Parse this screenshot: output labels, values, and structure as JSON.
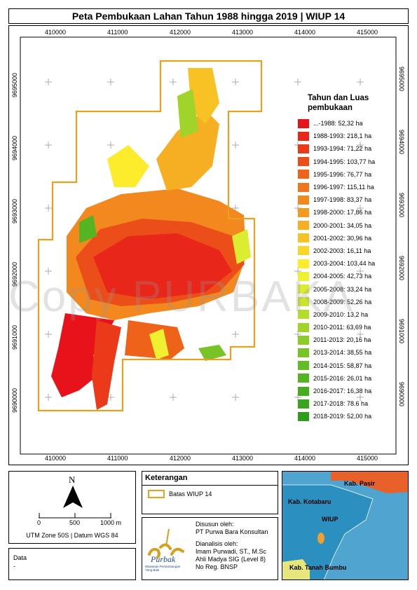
{
  "title": "Peta Pembukaan Lahan Tahun 1988 hingga 2019 | WIUP 14",
  "watermark": "Copy PURBAKA",
  "x_ticks": [
    "410000",
    "411000",
    "412000",
    "413000",
    "414000",
    "415000"
  ],
  "y_ticks": [
    "9695000",
    "9694000",
    "9693000",
    "9692000",
    "9691000",
    "9690000"
  ],
  "legend": {
    "title_line1": "Tahun dan Luas",
    "title_line2": "pembukaan",
    "items": [
      {
        "label": "...-1988: 52,32 ha",
        "color": "#e8121a"
      },
      {
        "label": "1988-1993: 218,1 ha",
        "color": "#e8261a"
      },
      {
        "label": "1993-1994: 71,22 ha",
        "color": "#ea3a1a"
      },
      {
        "label": "1994-1995: 103,77 ha",
        "color": "#ec4e1a"
      },
      {
        "label": "1995-1996: 76,77 ha",
        "color": "#ee621a"
      },
      {
        "label": "1996-1997: 115,11 ha",
        "color": "#f0761c"
      },
      {
        "label": "1997-1998: 83,37 ha",
        "color": "#f2881e"
      },
      {
        "label": "1998-2000: 17,86 ha",
        "color": "#f49a20"
      },
      {
        "label": "2000-2001: 34,05 ha",
        "color": "#f6ae22"
      },
      {
        "label": "2001-2002: 30,96 ha",
        "color": "#f8c224"
      },
      {
        "label": "2002-2003: 16,11 ha",
        "color": "#fad628"
      },
      {
        "label": "2003-2004: 103,44 ha",
        "color": "#fcec2c"
      },
      {
        "label": "2004-2005: 42,73 ha",
        "color": "#eef030"
      },
      {
        "label": "2005-2008: 33,24 ha",
        "color": "#dcec30"
      },
      {
        "label": "2008-2009: 52,26 ha",
        "color": "#c8e42e"
      },
      {
        "label": "2009-2010: 13,2 ha",
        "color": "#b4dc2c"
      },
      {
        "label": "2010-2011: 63,69 ha",
        "color": "#a0d42a"
      },
      {
        "label": "2011-2013: 20,16 ha",
        "color": "#8ccc28"
      },
      {
        "label": "2013-2014: 38,55 ha",
        "color": "#78c426"
      },
      {
        "label": "2014-2015: 58,87 ha",
        "color": "#64bc24"
      },
      {
        "label": "2015-2016: 26,01 ha",
        "color": "#54b422"
      },
      {
        "label": "2016-2017: 16,38 ha",
        "color": "#46ac20"
      },
      {
        "label": "2017-2018: 78.6 ha",
        "color": "#3aa41e"
      },
      {
        "label": "2018-2019: 52,00 ha",
        "color": "#309c1c"
      }
    ]
  },
  "north": {
    "letter": "N",
    "scale_labels": [
      "0",
      "500",
      "1000 m"
    ],
    "projection": "UTM Zone 50S | Datum WGS 84"
  },
  "keterangan": {
    "title": "Keterangan",
    "boundary_label": "Batas WIUP 14",
    "boundary_color": "#e8a020"
  },
  "credits": {
    "disusun_label": "Disusun oleh:",
    "disusun_value": "PT Purwa Bara Konsultan",
    "dianalisis_label": "Dianalisis oleh:",
    "analyst_name": "Imam Purwadi, ST., M.Sc",
    "analyst_role": "Ahli Madya SIG (Level 8)",
    "analyst_reg": "No Reg. BNSP",
    "logo_text": "Purbak",
    "logo_sub": "Wawasan Pertambangan Yang Baik"
  },
  "inset": {
    "labels": [
      "Kab. Pasir",
      "Kab. Kotabaru",
      "WIUP",
      "Kab. Tanah Bumbu"
    ],
    "colors": {
      "sea": "#4fa4d0",
      "land": "#2b8fbf",
      "pasir": "#e8602a",
      "tanah_bumbu": "#e6e67a",
      "wiup": "#f0a030"
    }
  },
  "data_box": {
    "title": "Data",
    "value": "-"
  }
}
